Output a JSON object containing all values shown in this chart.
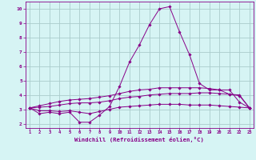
{
  "x": [
    1,
    2,
    3,
    4,
    5,
    6,
    7,
    8,
    9,
    10,
    11,
    12,
    13,
    14,
    15,
    16,
    17,
    18,
    19,
    20,
    21,
    22,
    23
  ],
  "line1": [
    3.1,
    2.7,
    2.8,
    2.7,
    2.8,
    2.1,
    2.1,
    2.6,
    3.2,
    4.6,
    6.3,
    7.5,
    8.9,
    10.0,
    10.15,
    8.4,
    6.8,
    4.8,
    4.35,
    4.35,
    4.35,
    3.5,
    3.1
  ],
  "line2": [
    3.1,
    2.9,
    2.9,
    2.85,
    2.9,
    2.8,
    2.7,
    2.85,
    3.0,
    3.15,
    3.2,
    3.25,
    3.3,
    3.35,
    3.35,
    3.35,
    3.3,
    3.3,
    3.3,
    3.25,
    3.2,
    3.15,
    3.1
  ],
  "line3": [
    3.1,
    3.15,
    3.2,
    3.3,
    3.4,
    3.45,
    3.45,
    3.5,
    3.6,
    3.75,
    3.85,
    3.9,
    4.0,
    4.05,
    4.1,
    4.1,
    4.1,
    4.15,
    4.15,
    4.1,
    4.05,
    3.95,
    3.1
  ],
  "line4": [
    3.1,
    3.25,
    3.4,
    3.55,
    3.65,
    3.7,
    3.75,
    3.85,
    3.95,
    4.1,
    4.25,
    4.35,
    4.4,
    4.5,
    4.5,
    4.5,
    4.5,
    4.5,
    4.45,
    4.35,
    4.05,
    4.0,
    3.1
  ],
  "line_color": "#880088",
  "bg_color": "#d6f4f4",
  "grid_color": "#aacccc",
  "xlabel": "Windchill (Refroidissement éolien,°C)",
  "xlabel_color": "#880088",
  "tick_color": "#880088",
  "ylim": [
    1.7,
    10.5
  ],
  "xlim": [
    0.6,
    23.4
  ],
  "yticks": [
    2,
    3,
    4,
    5,
    6,
    7,
    8,
    9,
    10
  ],
  "xticks": [
    1,
    2,
    3,
    4,
    5,
    6,
    7,
    8,
    9,
    10,
    11,
    12,
    13,
    14,
    15,
    16,
    17,
    18,
    19,
    20,
    21,
    22,
    23
  ]
}
